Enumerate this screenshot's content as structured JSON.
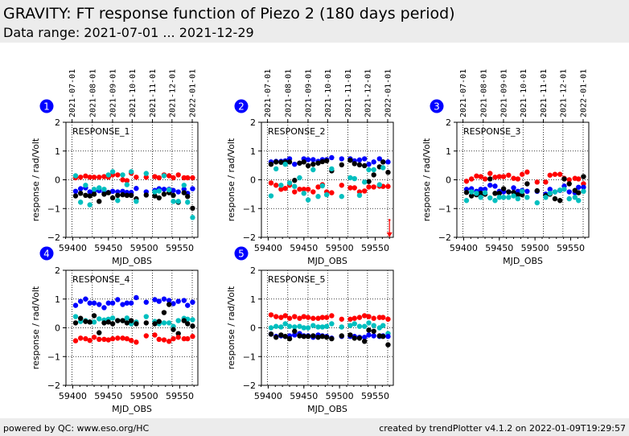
{
  "header": {
    "title": "GRAVITY: FT response function of Piezo 2 (180 days period)",
    "subtitle": "Data range: 2021-07-01 ... 2021-12-29"
  },
  "footer": {
    "left": "powered by QC: www.eso.org/HC",
    "right": "created by trendPlotter v4.1.2 on 2022-01-09T19:29:57"
  },
  "colors": {
    "red": "#ff0000",
    "blue": "#0000ff",
    "black": "#000000",
    "cyan": "#00bfbf",
    "badge": "#0000ff"
  },
  "chart_data": [
    {
      "type": "scatter",
      "badge": "1",
      "title": "RESPONSE_1",
      "xlabel": "MJD_OBS",
      "ylabel": "response / rad/Volt",
      "ylim": [
        -2,
        2
      ],
      "yticks": [
        "2",
        "1",
        "0",
        "−1",
        "−2"
      ],
      "xticks": [
        "59400",
        "59450",
        "59500",
        "59550"
      ],
      "date_ticks": [
        "2021-07-01",
        "2021-08-01",
        "2021-09-01",
        "2021-10-01",
        "2021-11-01",
        "2021-12-01",
        "2022-01-01"
      ],
      "grid": true,
      "x": [
        59404,
        59411,
        59418,
        59424,
        59430,
        59437,
        59444,
        59450,
        59456,
        59463,
        59470,
        59476,
        59482,
        59489,
        59503,
        59515,
        59521,
        59528,
        59535,
        59541,
        59548,
        59556,
        59561,
        59568
      ],
      "series": [
        {
          "color": "red",
          "values": [
            0.07,
            0.09,
            0.13,
            0.09,
            0.09,
            0.09,
            0.11,
            0.09,
            0.17,
            0.17,
            0.0,
            -0.03,
            0.23,
            0.09,
            0.09,
            0.11,
            0.07,
            0.17,
            0.14,
            0.07,
            0.17,
            0.07,
            0.07,
            0.07
          ]
        },
        {
          "color": "blue",
          "values": [
            -0.4,
            -0.31,
            -0.28,
            -0.42,
            -0.38,
            -0.38,
            -0.45,
            -0.44,
            -0.4,
            -0.42,
            -0.4,
            -0.44,
            -0.44,
            -0.3,
            -0.42,
            -0.37,
            -0.31,
            -0.33,
            -0.33,
            -0.37,
            -0.42,
            -0.33,
            -0.47,
            -0.31
          ]
        },
        {
          "color": "black",
          "values": [
            -0.56,
            -0.47,
            -0.54,
            -0.56,
            -0.5,
            -0.75,
            -0.5,
            -0.45,
            -0.63,
            -0.54,
            -0.52,
            -0.54,
            -0.54,
            -0.66,
            -0.53,
            -0.56,
            -0.63,
            -0.5,
            -0.45,
            -0.54,
            -0.78,
            -0.45,
            -0.58,
            -0.99
          ]
        },
        {
          "color": "cyan",
          "values": [
            0.14,
            -0.78,
            -0.19,
            -0.87,
            -0.33,
            -0.28,
            -0.33,
            0.17,
            0.28,
            -0.72,
            0.17,
            -0.17,
            0.28,
            -0.75,
            0.22,
            -0.42,
            -0.39,
            0.14,
            -0.35,
            -0.75,
            -0.75,
            -0.19,
            -0.78,
            -1.31
          ]
        }
      ]
    },
    {
      "type": "scatter",
      "badge": "2",
      "title": "RESPONSE_2",
      "xlabel": "MJD_OBS",
      "ylabel": "response / rad/Volt",
      "ylim": [
        -2,
        2
      ],
      "yticks": [
        "2",
        "1",
        "0",
        "−1",
        "−2"
      ],
      "xticks": [
        "59400",
        "59450",
        "59500",
        "59550"
      ],
      "date_ticks": [
        "2021-07-01",
        "2021-08-01",
        "2021-09-01",
        "2021-10-01",
        "2021-11-01",
        "2021-12-01",
        "2022-01-01"
      ],
      "grid": true,
      "x": [
        59404,
        59411,
        59418,
        59424,
        59430,
        59437,
        59444,
        59450,
        59456,
        59463,
        59470,
        59476,
        59482,
        59489,
        59503,
        59515,
        59521,
        59528,
        59535,
        59541,
        59548,
        59556,
        59561,
        59568
      ],
      "offscale_marker": {
        "x": 59570,
        "direction": "down",
        "color": "red"
      },
      "series": [
        {
          "color": "blue",
          "values": [
            0.62,
            0.64,
            0.64,
            0.66,
            0.73,
            0.54,
            0.58,
            0.73,
            0.7,
            0.7,
            0.64,
            0.7,
            0.7,
            0.77,
            0.73,
            0.73,
            0.66,
            0.69,
            0.73,
            0.54,
            0.62,
            0.73,
            0.62,
            0.62
          ]
        },
        {
          "color": "black",
          "values": [
            0.54,
            0.62,
            0.61,
            0.62,
            0.62,
            -0.02,
            0.58,
            0.62,
            0.49,
            0.54,
            0.58,
            0.63,
            0.66,
            0.31,
            0.52,
            0.68,
            0.56,
            0.52,
            0.49,
            -0.06,
            0.17,
            0.45,
            0.62,
            0.26
          ]
        },
        {
          "color": "red",
          "values": [
            -0.11,
            -0.19,
            -0.33,
            -0.3,
            -0.19,
            -0.42,
            -0.33,
            -0.33,
            -0.33,
            -0.42,
            -0.25,
            -0.17,
            -0.42,
            -0.45,
            -0.19,
            -0.28,
            -0.28,
            -0.42,
            -0.39,
            -0.25,
            -0.25,
            -0.22,
            -0.23,
            -0.23
          ]
        },
        {
          "color": "cyan",
          "values": [
            -0.56,
            0.38,
            -0.19,
            0.54,
            -0.11,
            -0.23,
            0.07,
            -0.47,
            -0.7,
            0.35,
            -0.58,
            -0.21,
            -0.52,
            0.38,
            -0.58,
            0.07,
            0.04,
            -0.54,
            -0.08,
            0.35,
            0.35,
            -0.17,
            0.42,
            null
          ]
        }
      ]
    },
    {
      "type": "scatter",
      "badge": "3",
      "title": "RESPONSE_3",
      "xlabel": "MJD_OBS",
      "ylabel": "response / rad/Volt",
      "ylim": [
        -2,
        2
      ],
      "yticks": [
        "2",
        "1",
        "0",
        "−1",
        "−2"
      ],
      "xticks": [
        "59400",
        "59450",
        "59500",
        "59550"
      ],
      "date_ticks": [
        "2021-07-01",
        "2021-08-01",
        "2021-09-01",
        "2021-10-01",
        "2021-11-01",
        "2021-12-01",
        "2022-01-01"
      ],
      "grid": true,
      "x": [
        59404,
        59411,
        59418,
        59424,
        59430,
        59437,
        59444,
        59450,
        59456,
        59463,
        59470,
        59476,
        59482,
        59489,
        59503,
        59515,
        59521,
        59528,
        59535,
        59541,
        59548,
        59556,
        59561,
        59568
      ],
      "series": [
        {
          "color": "red",
          "values": [
            -0.05,
            0.03,
            0.13,
            0.11,
            0.03,
            0.22,
            0.09,
            0.11,
            0.11,
            0.16,
            0.05,
            0.03,
            0.19,
            0.27,
            -0.08,
            -0.08,
            0.16,
            0.19,
            0.19,
            0.05,
            0.0,
            0.05,
            0.03,
            -0.14
          ]
        },
        {
          "color": "blue",
          "values": [
            -0.33,
            -0.31,
            -0.4,
            -0.33,
            -0.33,
            -0.19,
            -0.22,
            -0.4,
            -0.42,
            -0.42,
            -0.28,
            -0.4,
            -0.37,
            -0.4,
            -0.4,
            -0.5,
            -0.33,
            -0.42,
            -0.37,
            -0.22,
            -0.42,
            -0.45,
            -0.26,
            -0.26
          ]
        },
        {
          "color": "black",
          "values": [
            -0.44,
            -0.56,
            -0.52,
            -0.47,
            -0.5,
            0.03,
            -0.47,
            -0.47,
            -0.31,
            -0.42,
            -0.44,
            -0.52,
            -0.52,
            -0.14,
            -0.38,
            -0.55,
            -0.5,
            -0.66,
            -0.72,
            0.03,
            -0.14,
            -0.37,
            -0.45,
            0.11
          ]
        },
        {
          "color": "cyan",
          "values": [
            -0.72,
            -0.42,
            -0.47,
            -0.61,
            -0.45,
            -0.63,
            -0.72,
            -0.61,
            -0.61,
            -0.61,
            -0.56,
            -0.66,
            -0.4,
            -0.61,
            -0.8,
            -0.61,
            -0.47,
            -0.42,
            -0.36,
            -0.33,
            -0.66,
            -0.61,
            -0.72,
            -0.4
          ]
        }
      ]
    },
    {
      "type": "scatter",
      "badge": "4",
      "title": "RESPONSE_4",
      "xlabel": "MJD_OBS",
      "ylabel": "response / rad/Volt",
      "ylim": [
        -2,
        2
      ],
      "yticks": [
        "2",
        "1",
        "0",
        "−1",
        "−2"
      ],
      "xticks": [
        "59400",
        "59450",
        "59500",
        "59550"
      ],
      "grid": true,
      "x": [
        59404,
        59411,
        59418,
        59424,
        59430,
        59437,
        59444,
        59450,
        59456,
        59463,
        59470,
        59476,
        59482,
        59489,
        59503,
        59515,
        59521,
        59528,
        59535,
        59541,
        59548,
        59556,
        59561,
        59568
      ],
      "series": [
        {
          "color": "blue",
          "values": [
            0.78,
            0.92,
            1.0,
            0.86,
            0.86,
            0.81,
            0.7,
            0.86,
            0.86,
            0.98,
            0.81,
            0.86,
            0.86,
            1.05,
            0.89,
            0.98,
            0.92,
            1.0,
            0.95,
            0.84,
            0.92,
            0.95,
            0.78,
            0.89
          ]
        },
        {
          "color": "cyan",
          "values": [
            0.39,
            0.22,
            0.25,
            0.2,
            0.2,
            0.31,
            0.27,
            0.3,
            0.34,
            0.25,
            0.25,
            0.34,
            0.14,
            0.2,
            0.39,
            0.22,
            0.14,
            0.17,
            0.17,
            0.05,
            0.25,
            0.33,
            0.3,
            0.28
          ]
        },
        {
          "color": "black",
          "values": [
            0.17,
            0.33,
            0.22,
            0.2,
            0.42,
            -0.17,
            0.17,
            0.2,
            0.14,
            0.25,
            0.25,
            0.17,
            0.25,
            0.14,
            0.17,
            0.14,
            0.22,
            0.53,
            0.81,
            -0.06,
            -0.2,
            0.25,
            0.14,
            0.06
          ]
        },
        {
          "color": "red",
          "values": [
            -0.45,
            -0.36,
            -0.38,
            -0.44,
            -0.33,
            -0.4,
            -0.4,
            -0.42,
            -0.38,
            -0.36,
            -0.36,
            -0.38,
            -0.44,
            -0.5,
            -0.28,
            -0.25,
            -0.4,
            -0.42,
            -0.47,
            -0.38,
            -0.33,
            -0.38,
            -0.38,
            -0.3
          ]
        }
      ]
    },
    {
      "type": "scatter",
      "badge": "5",
      "title": "RESPONSE_5",
      "xlabel": "MJD_OBS",
      "ylabel": "response / rad/Volt",
      "ylim": [
        -2,
        2
      ],
      "yticks": [
        "2",
        "1",
        "0",
        "−1",
        "−2"
      ],
      "xticks": [
        "59400",
        "59450",
        "59500",
        "59550"
      ],
      "grid": true,
      "x": [
        59404,
        59411,
        59418,
        59424,
        59430,
        59437,
        59444,
        59450,
        59456,
        59463,
        59470,
        59476,
        59482,
        59489,
        59503,
        59515,
        59521,
        59528,
        59535,
        59541,
        59548,
        59556,
        59561,
        59568
      ],
      "series": [
        {
          "color": "red",
          "values": [
            0.45,
            0.39,
            0.36,
            0.42,
            0.33,
            0.39,
            0.33,
            0.39,
            0.36,
            0.33,
            0.33,
            0.36,
            0.36,
            0.42,
            0.3,
            0.3,
            0.33,
            0.36,
            0.42,
            0.39,
            0.33,
            0.36,
            0.36,
            0.3
          ]
        },
        {
          "color": "cyan",
          "values": [
            0.0,
            0.05,
            0.03,
            0.14,
            0.05,
            0.03,
            0.05,
            0.0,
            0.0,
            0.08,
            0.03,
            0.03,
            0.05,
            0.14,
            0.03,
            0.08,
            0.14,
            0.05,
            0.05,
            0.17,
            0.08,
            0.0,
            0.08,
            -0.2
          ]
        },
        {
          "color": "blue",
          "values": [
            -0.22,
            -0.3,
            -0.28,
            -0.3,
            -0.28,
            -0.25,
            -0.2,
            -0.28,
            -0.28,
            -0.33,
            -0.25,
            -0.28,
            -0.3,
            -0.36,
            -0.3,
            -0.3,
            -0.3,
            -0.33,
            -0.33,
            -0.25,
            -0.28,
            -0.3,
            -0.28,
            -0.3
          ]
        },
        {
          "color": "black",
          "values": [
            -0.22,
            -0.33,
            -0.25,
            -0.3,
            -0.38,
            -0.12,
            -0.28,
            -0.3,
            -0.3,
            -0.28,
            -0.33,
            -0.3,
            -0.33,
            -0.38,
            -0.28,
            -0.25,
            -0.36,
            -0.36,
            -0.47,
            -0.08,
            -0.12,
            -0.28,
            -0.3,
            -0.59
          ]
        }
      ]
    }
  ]
}
